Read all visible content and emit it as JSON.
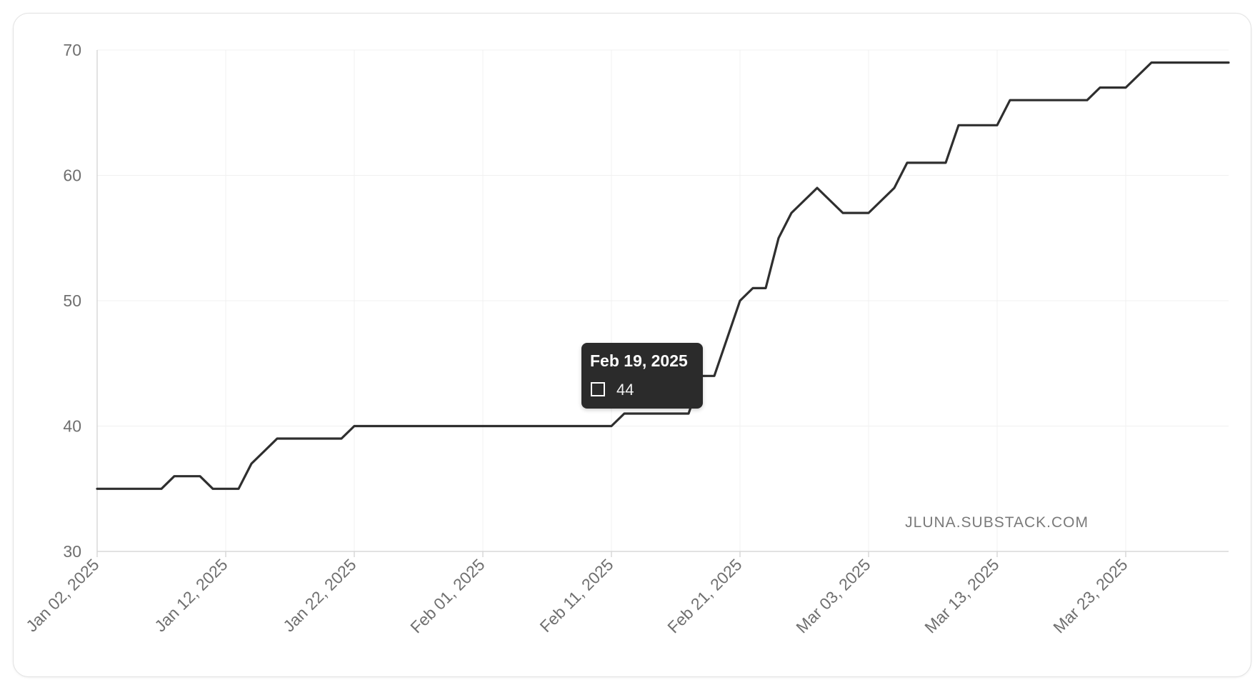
{
  "watermark": "JLUNA.SUBSTACK.COM",
  "tooltip": {
    "date": "Feb 19, 2025",
    "value": "44"
  },
  "colors": {
    "line": "#2f2f2f",
    "tooltip_bg": "#2b2b2b"
  },
  "chart_data": {
    "type": "line",
    "title": "",
    "xlabel": "",
    "ylabel": "",
    "grid": true,
    "legend": "none",
    "xlim": [
      "2025-01-02",
      "2025-03-31"
    ],
    "ylim": [
      30,
      70
    ],
    "yticks": [
      30,
      40,
      50,
      60,
      70
    ],
    "xticks": [
      {
        "date": "2025-01-02",
        "label": "Jan 02, 2025"
      },
      {
        "date": "2025-01-12",
        "label": "Jan 12, 2025"
      },
      {
        "date": "2025-01-22",
        "label": "Jan 22, 2025"
      },
      {
        "date": "2025-02-01",
        "label": "Feb 01, 2025"
      },
      {
        "date": "2025-02-11",
        "label": "Feb 11, 2025"
      },
      {
        "date": "2025-02-21",
        "label": "Feb 21, 2025"
      },
      {
        "date": "2025-03-03",
        "label": "Mar 03, 2025"
      },
      {
        "date": "2025-03-13",
        "label": "Mar 13, 2025"
      },
      {
        "date": "2025-03-23",
        "label": "Mar 23, 2025"
      }
    ],
    "series": [
      {
        "points": [
          [
            "2025-01-02",
            35
          ],
          [
            "2025-01-07",
            35
          ],
          [
            "2025-01-08",
            36
          ],
          [
            "2025-01-10",
            36
          ],
          [
            "2025-01-11",
            35
          ],
          [
            "2025-01-13",
            35
          ],
          [
            "2025-01-14",
            37
          ],
          [
            "2025-01-15",
            38
          ],
          [
            "2025-01-16",
            39
          ],
          [
            "2025-01-21",
            39
          ],
          [
            "2025-01-22",
            40
          ],
          [
            "2025-02-11",
            40
          ],
          [
            "2025-02-12",
            41
          ],
          [
            "2025-02-17",
            41
          ],
          [
            "2025-02-18",
            44
          ],
          [
            "2025-02-19",
            44
          ],
          [
            "2025-02-20",
            47
          ],
          [
            "2025-02-21",
            50
          ],
          [
            "2025-02-22",
            51
          ],
          [
            "2025-02-23",
            51
          ],
          [
            "2025-02-24",
            55
          ],
          [
            "2025-02-25",
            57
          ],
          [
            "2025-02-26",
            58
          ],
          [
            "2025-02-27",
            59
          ],
          [
            "2025-02-28",
            58
          ],
          [
            "2025-03-01",
            57
          ],
          [
            "2025-03-03",
            57
          ],
          [
            "2025-03-04",
            58
          ],
          [
            "2025-03-05",
            59
          ],
          [
            "2025-03-06",
            61
          ],
          [
            "2025-03-09",
            61
          ],
          [
            "2025-03-10",
            64
          ],
          [
            "2025-03-13",
            64
          ],
          [
            "2025-03-14",
            66
          ],
          [
            "2025-03-20",
            66
          ],
          [
            "2025-03-21",
            67
          ],
          [
            "2025-03-23",
            67
          ],
          [
            "2025-03-24",
            68
          ],
          [
            "2025-03-25",
            69
          ],
          [
            "2025-03-31",
            69
          ]
        ]
      }
    ]
  }
}
